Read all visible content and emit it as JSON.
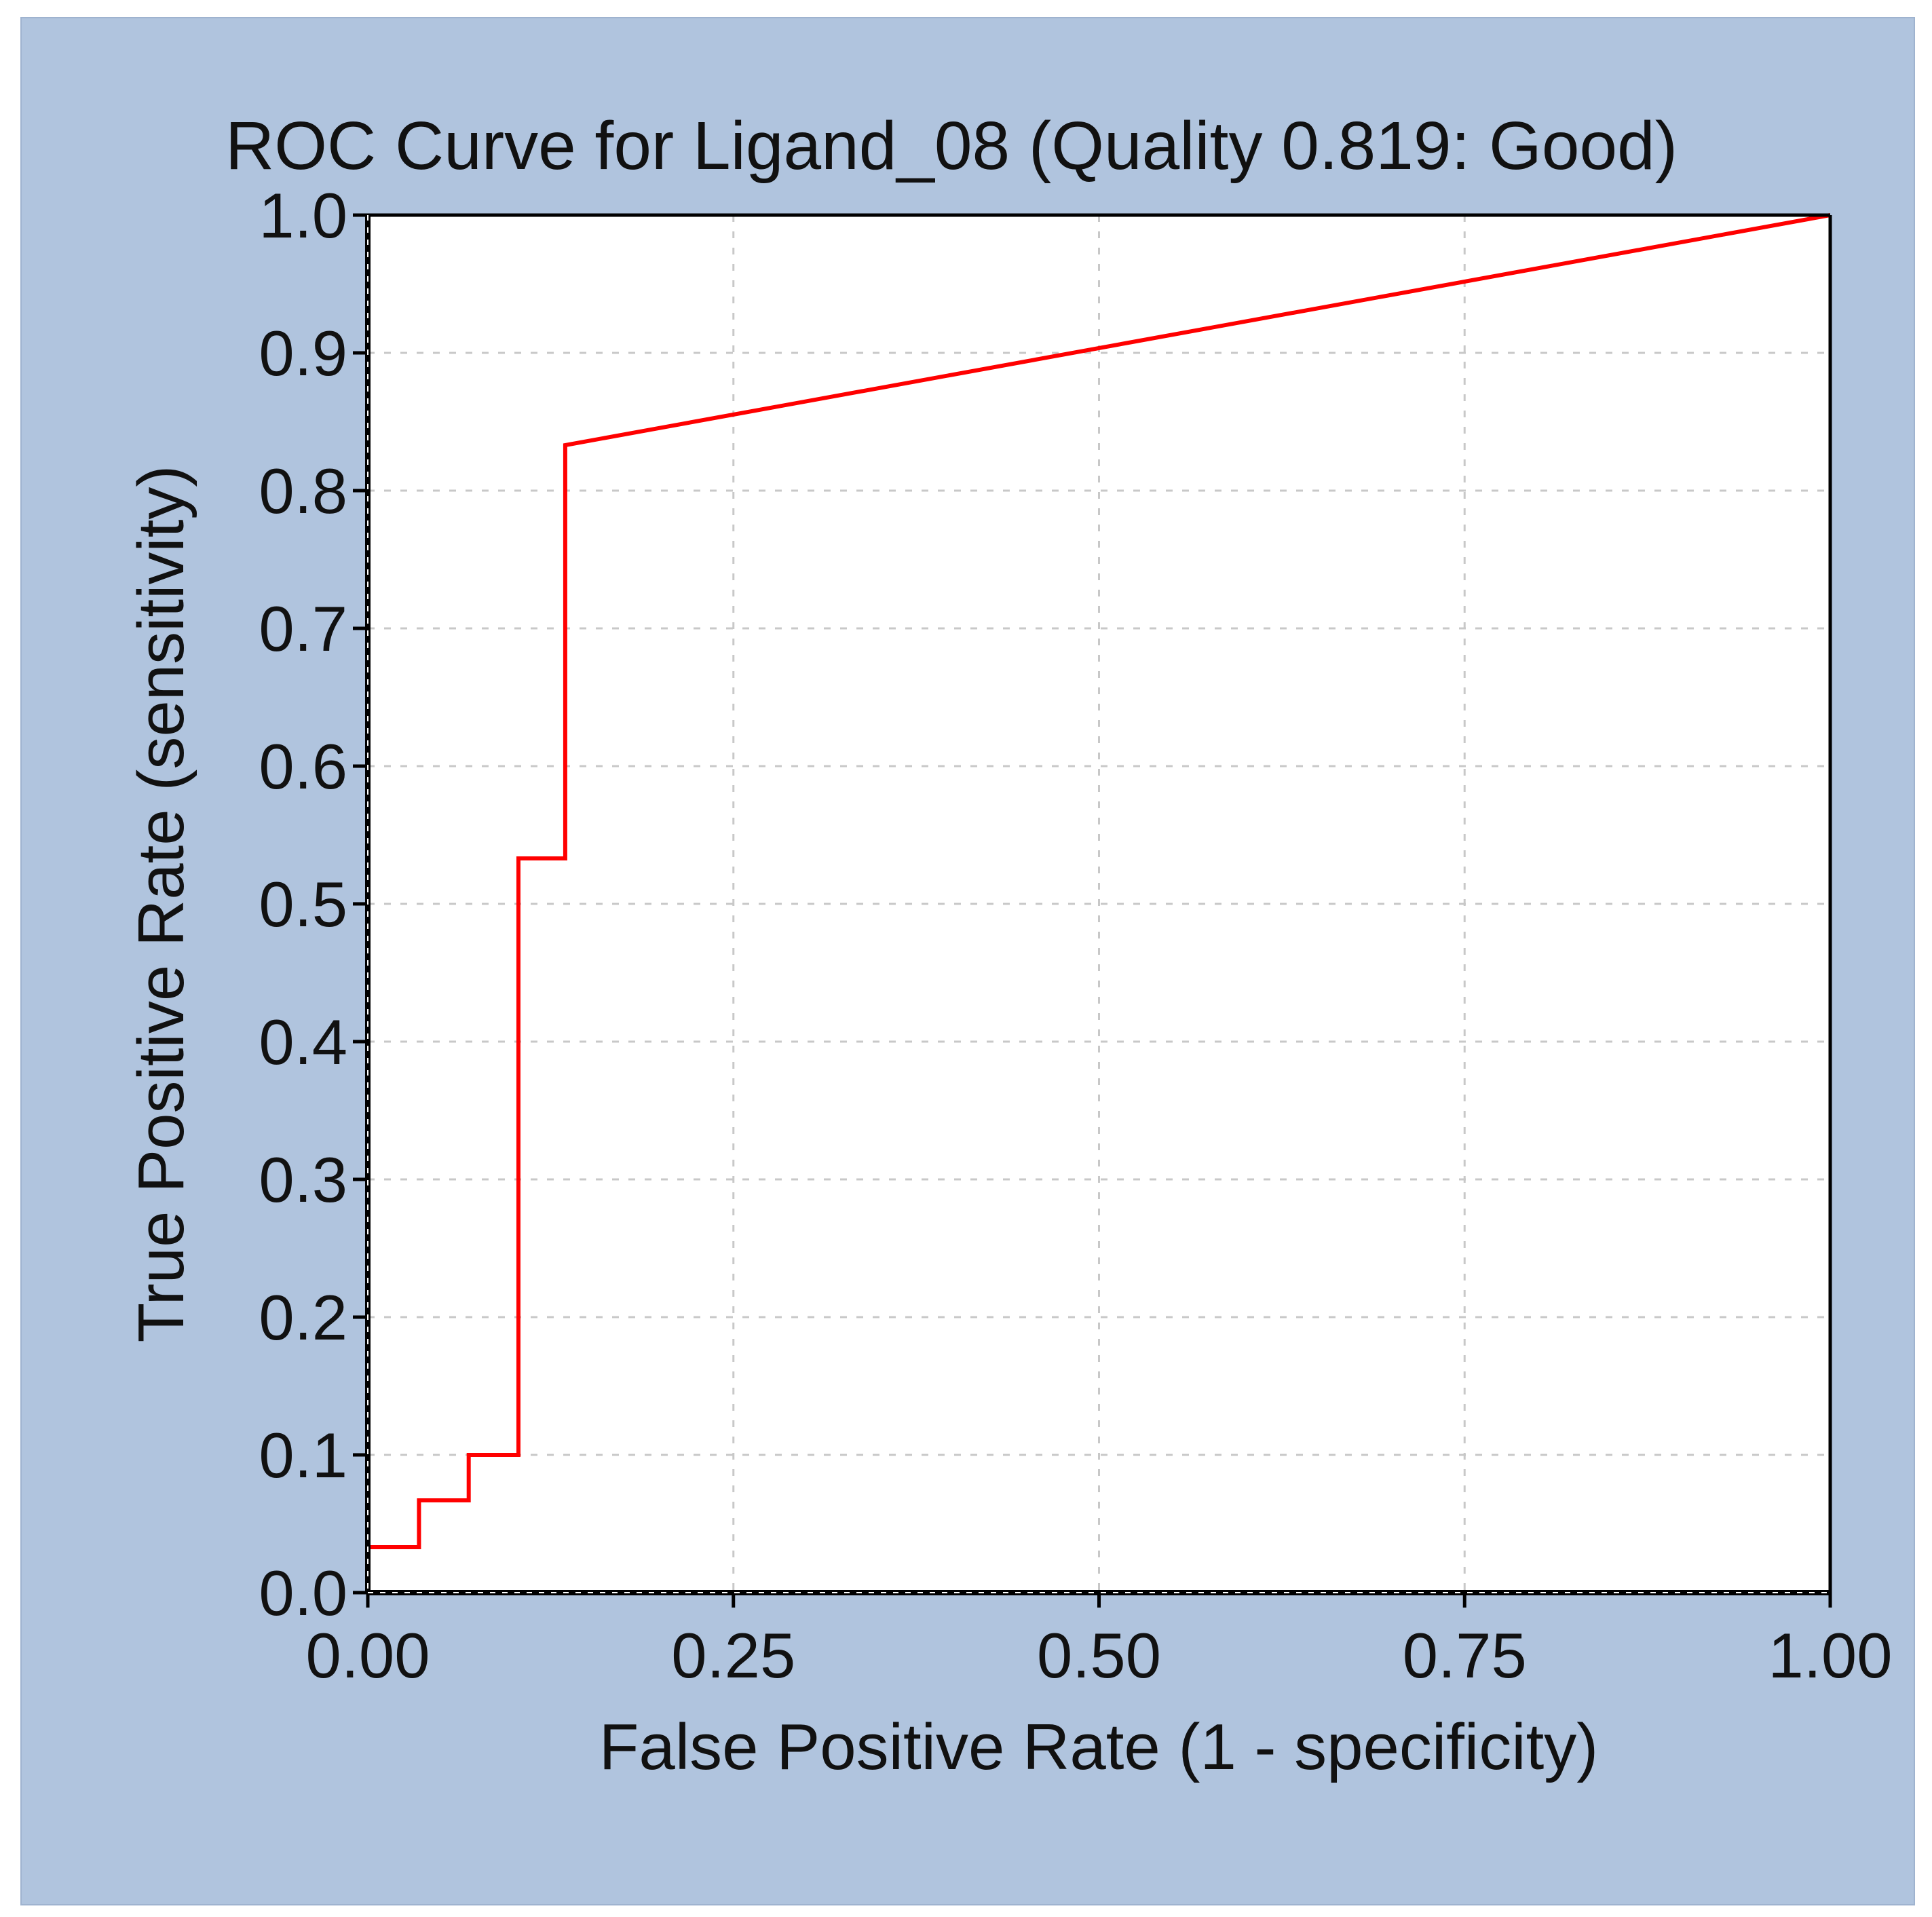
{
  "colors": {
    "panel_background": "#b0c4de",
    "plot_background": "#ffffff",
    "curve": "#ff0000",
    "grid": "#c8c8c8",
    "axis": "#000000"
  },
  "chart_data": {
    "type": "line",
    "title": "ROC Curve for  Ligand_08  (Quality 0.819: Good)",
    "xlabel": "False Positive Rate (1 - specificity)",
    "ylabel": "True Positive Rate (sensitivity)",
    "xlim": [
      0,
      1
    ],
    "ylim": [
      0,
      1
    ],
    "grid": true,
    "x_ticks": [
      "0.00",
      "0.25",
      "0.50",
      "0.75",
      "1.00"
    ],
    "x_tick_values": [
      0,
      0.25,
      0.5,
      0.75,
      1.0
    ],
    "y_ticks": [
      "0.0",
      "0.1",
      "0.2",
      "0.3",
      "0.4",
      "0.5",
      "0.6",
      "0.7",
      "0.8",
      "0.9",
      "1.0"
    ],
    "y_tick_values": [
      0,
      0.1,
      0.2,
      0.3,
      0.4,
      0.5,
      0.6,
      0.7,
      0.8,
      0.9,
      1.0
    ],
    "series": [
      {
        "name": "ROC curve",
        "points": [
          [
            0.0,
            0.0
          ],
          [
            0.0,
            0.033
          ],
          [
            0.035,
            0.033
          ],
          [
            0.035,
            0.067
          ],
          [
            0.069,
            0.067
          ],
          [
            0.069,
            0.1
          ],
          [
            0.103,
            0.1
          ],
          [
            0.103,
            0.533
          ],
          [
            0.135,
            0.533
          ],
          [
            0.135,
            0.833
          ],
          [
            1.0,
            1.0
          ]
        ]
      }
    ]
  }
}
